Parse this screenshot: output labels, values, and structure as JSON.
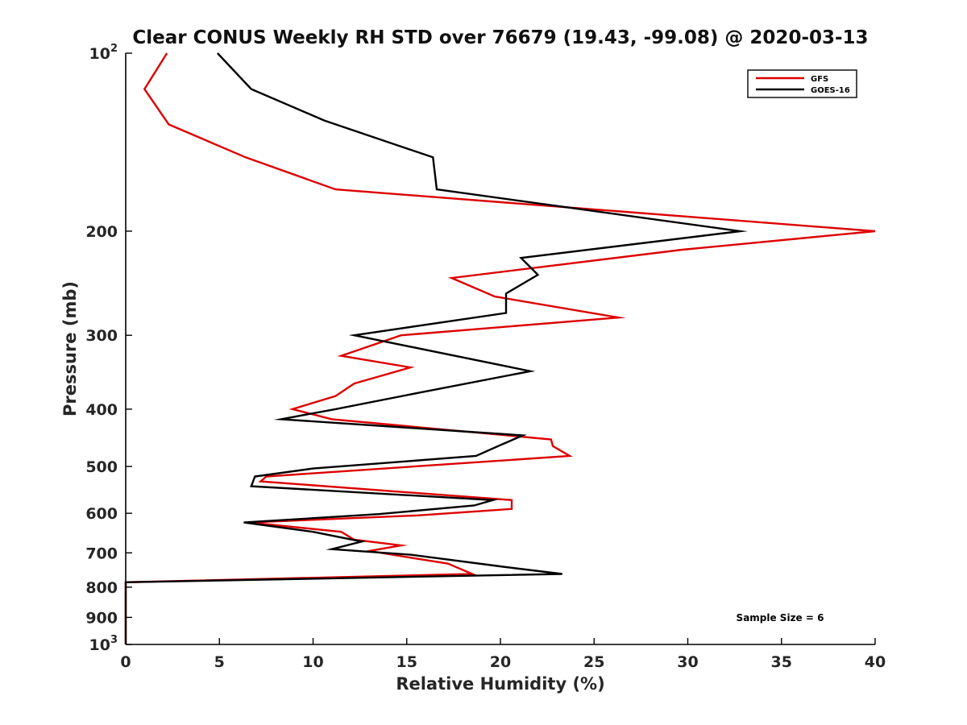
{
  "chart_data": {
    "type": "line",
    "title": "Clear CONUS Weekly RH STD over 76679 (19.43, -99.08) @ 2020-03-13",
    "xlabel": "Relative Humidity (%)",
    "ylabel": "Pressure (mb)",
    "xlim": [
      0,
      40
    ],
    "ylim": [
      100,
      1000
    ],
    "yscale": "log",
    "y_reversed": true,
    "x_ticks": [
      0,
      5,
      10,
      15,
      20,
      25,
      30,
      35,
      40
    ],
    "y_ticks": [
      {
        "value": 100,
        "label": "10",
        "sup": "2"
      },
      {
        "value": 200,
        "label": "200"
      },
      {
        "value": 300,
        "label": "300"
      },
      {
        "value": 400,
        "label": "400"
      },
      {
        "value": 500,
        "label": "500"
      },
      {
        "value": 600,
        "label": "600"
      },
      {
        "value": 700,
        "label": "700"
      },
      {
        "value": 800,
        "label": "800"
      },
      {
        "value": 900,
        "label": "900"
      },
      {
        "value": 1000,
        "label": "10",
        "sup": "3"
      }
    ],
    "grid": false,
    "legend_position": "top-right",
    "annotation": "Sample Size = 6",
    "series": [
      {
        "name": "GFS",
        "color": "#dd0000",
        "points": [
          [
            2.2,
            100
          ],
          [
            1.0,
            115
          ],
          [
            2.3,
            132
          ],
          [
            6.4,
            150
          ],
          [
            11.2,
            170
          ],
          [
            40.0,
            200
          ],
          [
            29.7,
            215
          ],
          [
            17.4,
            240
          ],
          [
            19.7,
            258
          ],
          [
            26.3,
            280
          ],
          [
            14.7,
            300
          ],
          [
            11.5,
            325
          ],
          [
            15.2,
            340
          ],
          [
            12.2,
            362
          ],
          [
            11.2,
            380
          ],
          [
            8.9,
            400
          ],
          [
            11.0,
            416
          ],
          [
            22.7,
            450
          ],
          [
            22.8,
            462
          ],
          [
            23.7,
            480
          ],
          [
            7.5,
            520
          ],
          [
            7.2,
            530
          ],
          [
            20.6,
            570
          ],
          [
            20.6,
            590
          ],
          [
            15.6,
            605
          ],
          [
            6.6,
            622
          ],
          [
            11.5,
            645
          ],
          [
            12.2,
            665
          ],
          [
            14.7,
            680
          ],
          [
            13.0,
            695
          ],
          [
            17.2,
            730
          ],
          [
            18.5,
            760
          ],
          [
            0.0,
            785
          ],
          [
            0.0,
            1000
          ]
        ]
      },
      {
        "name": "GOES-16",
        "color": "#000000",
        "points": [
          [
            4.9,
            100
          ],
          [
            6.7,
            115
          ],
          [
            10.6,
            130
          ],
          [
            16.4,
            150
          ],
          [
            16.6,
            170
          ],
          [
            32.8,
            200
          ],
          [
            21.1,
            222
          ],
          [
            22.0,
            237
          ],
          [
            20.3,
            255
          ],
          [
            20.3,
            275
          ],
          [
            12.2,
            300
          ],
          [
            21.6,
            345
          ],
          [
            15.7,
            375
          ],
          [
            11.2,
            400
          ],
          [
            8.3,
            416
          ],
          [
            21.2,
            443
          ],
          [
            20.0,
            460
          ],
          [
            18.7,
            480
          ],
          [
            10.0,
            504
          ],
          [
            6.9,
            520
          ],
          [
            6.7,
            540
          ],
          [
            19.6,
            570
          ],
          [
            18.6,
            582
          ],
          [
            13.5,
            602
          ],
          [
            6.3,
            622
          ],
          [
            10.0,
            645
          ],
          [
            12.6,
            670
          ],
          [
            11.0,
            690
          ],
          [
            15.2,
            705
          ],
          [
            20.3,
            740
          ],
          [
            23.3,
            760
          ],
          [
            0.0,
            785
          ],
          [
            0.0,
            1000
          ]
        ]
      }
    ]
  }
}
